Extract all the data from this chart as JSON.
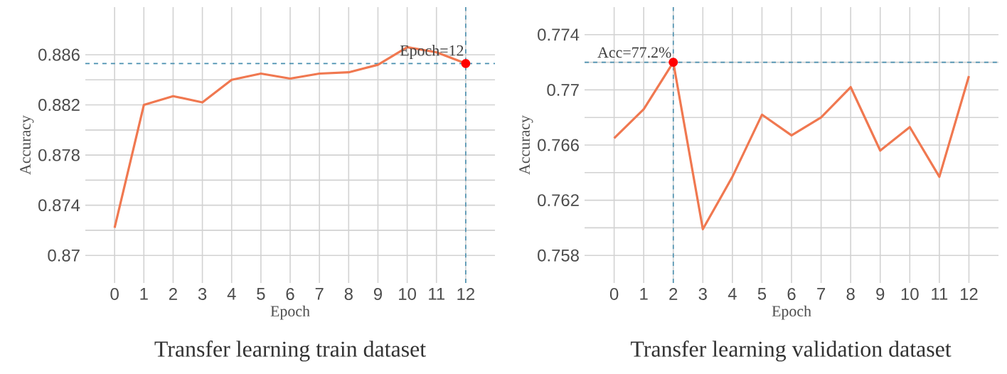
{
  "chart_data": [
    {
      "type": "line",
      "title": "Transfer learning train dataset",
      "xlabel": "Epoch",
      "ylabel": "Accuracy",
      "x": [
        0,
        1,
        2,
        3,
        4,
        5,
        6,
        7,
        8,
        9,
        10,
        11,
        12
      ],
      "series": [
        {
          "color": "#f07850",
          "values": [
            0.8722,
            0.882,
            0.8827,
            0.8822,
            0.884,
            0.8845,
            0.8841,
            0.8845,
            0.8846,
            0.8852,
            0.8866,
            0.8862,
            0.8853
          ]
        }
      ],
      "xlim": [
        -1,
        13
      ],
      "ylim": [
        0.8678,
        0.8898
      ],
      "xticks": [
        0,
        1,
        2,
        3,
        4,
        5,
        6,
        7,
        8,
        9,
        10,
        11,
        12
      ],
      "yticks": [
        0.87,
        0.874,
        0.878,
        0.882,
        0.886
      ],
      "grid": true,
      "marker": "none",
      "line_style": "solid",
      "ref_lines": [
        {
          "axis": "x",
          "value": 12,
          "color": "#4a90b0",
          "line_style": "dashed"
        },
        {
          "axis": "y",
          "value": 0.8853,
          "color": "#4a90b0",
          "line_style": "dashed"
        }
      ],
      "annotations": [
        {
          "text": "Epoch=12",
          "x": 12,
          "y": 0.8853
        }
      ]
    },
    {
      "type": "line",
      "title": "Transfer learning validation dataset",
      "xlabel": "Epoch",
      "ylabel": "Accuracy",
      "x": [
        0,
        1,
        2,
        3,
        4,
        5,
        6,
        7,
        8,
        9,
        10,
        11,
        12
      ],
      "series": [
        {
          "color": "#f07850",
          "values": [
            0.7665,
            0.7686,
            0.772,
            0.7599,
            0.7637,
            0.7682,
            0.7667,
            0.768,
            0.7702,
            0.7656,
            0.7673,
            0.7637,
            0.771
          ]
        }
      ],
      "xlim": [
        -1,
        13
      ],
      "ylim": [
        0.756,
        0.776
      ],
      "xticks": [
        0,
        1,
        2,
        3,
        4,
        5,
        6,
        7,
        8,
        9,
        10,
        11,
        12
      ],
      "yticks": [
        0.758,
        0.762,
        0.766,
        0.77,
        0.774
      ],
      "grid": true,
      "marker": "none",
      "line_style": "solid",
      "ref_lines": [
        {
          "axis": "x",
          "value": 2,
          "color": "#4a90b0",
          "line_style": "dashed"
        },
        {
          "axis": "y",
          "value": 0.772,
          "color": "#4a90b0",
          "line_style": "dashed"
        }
      ],
      "annotations": [
        {
          "text": "Acc=77.2%",
          "x": 2,
          "y": 0.772
        }
      ]
    }
  ]
}
